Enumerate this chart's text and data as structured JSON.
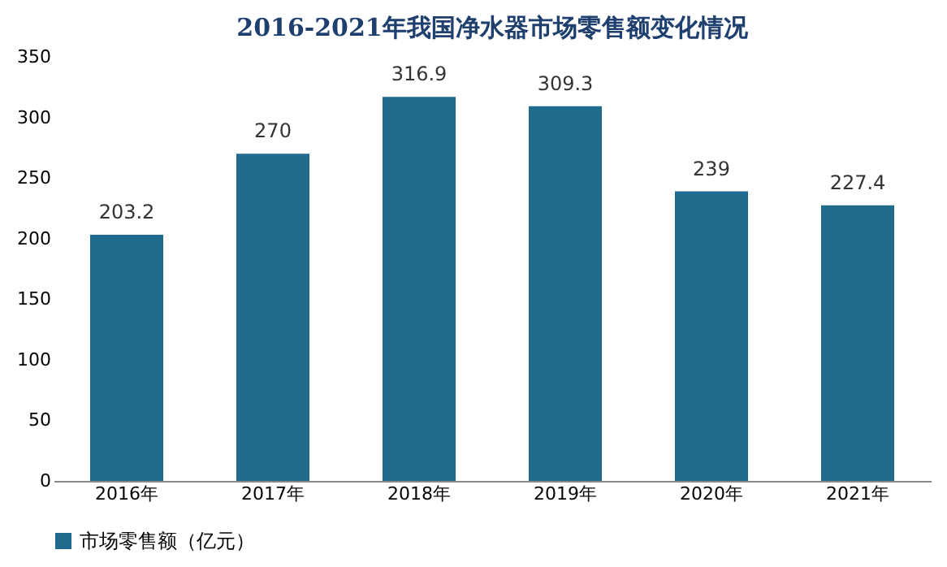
{
  "chart_data": {
    "type": "bar",
    "title": "2016-2021年我国净水器市场零售额变化情况",
    "categories": [
      "2016年",
      "2017年",
      "2018年",
      "2019年",
      "2020年",
      "2021年"
    ],
    "series": [
      {
        "name": "市场零售额（亿元）",
        "color": "#1f6b8e",
        "values": [
          203.2,
          270,
          316.9,
          309.3,
          239,
          227.4
        ]
      }
    ],
    "ylim": [
      0,
      350
    ],
    "yticks": [
      0,
      50,
      100,
      150,
      200,
      250,
      300,
      350
    ],
    "grid": false,
    "legend": "bottom",
    "data_labels": true
  }
}
